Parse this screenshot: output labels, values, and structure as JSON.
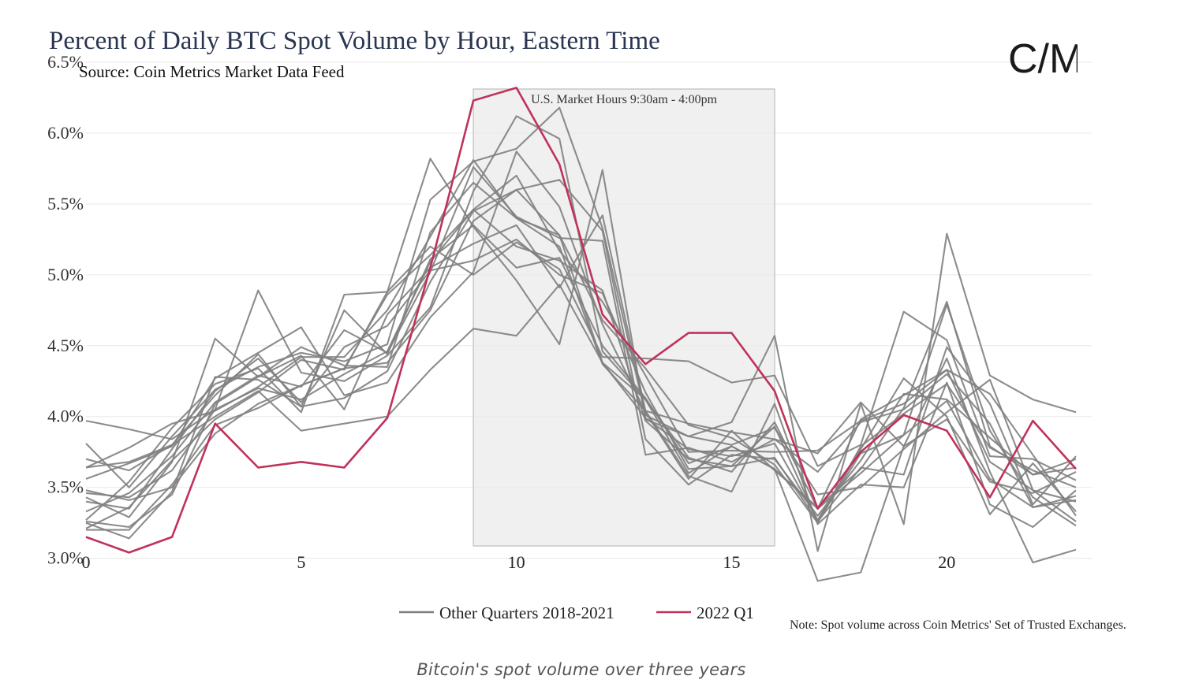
{
  "chart_data": {
    "type": "line",
    "title": "Percent of Daily BTC Spot Volume by Hour, Eastern Time",
    "subtitle": "Source: Coin Metrics Market Data Feed",
    "xlabel": "",
    "ylabel": "",
    "x": [
      0,
      1,
      2,
      3,
      4,
      5,
      6,
      7,
      8,
      9,
      10,
      11,
      12,
      13,
      14,
      15,
      16,
      17,
      18,
      19,
      20,
      21,
      22,
      23
    ],
    "xlim": [
      0,
      23
    ],
    "ylim": [
      2.77,
      6.55
    ],
    "x_ticks": [
      0,
      5,
      10,
      15,
      20
    ],
    "x_tick_labels": [
      "0",
      "5",
      "10",
      "15",
      "20"
    ],
    "y_ticks": [
      3.0,
      3.5,
      4.0,
      4.5,
      5.0,
      5.5,
      6.0,
      6.5
    ],
    "y_tick_labels": [
      "3.0%",
      "3.5%",
      "4.0%",
      "4.5%",
      "5.0%",
      "5.5%",
      "6.0%",
      "6.5%"
    ],
    "grid": true,
    "legend_position": "bottom-center",
    "shaded_region": {
      "x_start": 9,
      "x_end": 16,
      "label": "U.S. Market Hours 9:30am - 4:00pm",
      "color": "#ebebeb"
    },
    "colors": {
      "other_quarters": "#7f7f7f",
      "q1_2022": "#c0325a"
    },
    "legend": [
      "Other Quarters 2018-2021",
      "2022 Q1"
    ],
    "series": [
      {
        "name": "2022 Q1",
        "values": [
          3.15,
          3.04,
          3.15,
          3.95,
          3.64,
          3.68,
          3.64,
          3.99,
          5.05,
          6.23,
          6.32,
          5.78,
          4.72,
          4.37,
          4.59,
          4.59,
          4.18,
          3.35,
          3.75,
          4.01,
          3.9,
          3.43,
          3.97,
          3.63
        ]
      },
      {
        "group": "Other Quarters 2018-2021",
        "values": [
          3.97,
          3.91,
          3.84,
          4.05,
          4.2,
          4.12,
          4.3,
          4.46,
          5.09,
          5.46,
          5.7,
          5.17,
          4.81,
          4.29,
          3.75,
          3.76,
          3.75,
          3.76,
          3.97,
          4.09,
          4.33,
          3.68,
          3.48,
          3.26
        ]
      },
      {
        "group": "Other Quarters 2018-2021",
        "values": [
          3.81,
          3.5,
          3.86,
          4.19,
          4.35,
          4.45,
          4.39,
          4.51,
          5.53,
          5.8,
          5.89,
          6.18,
          5.33,
          4.01,
          3.86,
          3.8,
          3.92,
          3.45,
          3.5,
          3.77,
          4.03,
          4.26,
          3.48,
          3.4
        ]
      },
      {
        "group": "Other Quarters 2018-2021",
        "values": [
          3.64,
          3.68,
          3.8,
          4.15,
          4.44,
          4.07,
          4.75,
          4.44,
          5.11,
          5.35,
          5.05,
          5.12,
          4.5,
          4.13,
          3.67,
          3.79,
          3.63,
          3.35,
          3.98,
          4.15,
          4.33,
          4.16,
          3.73,
          3.3
        ]
      },
      {
        "group": "Other Quarters 2018-2021",
        "values": [
          3.48,
          3.41,
          3.5,
          3.88,
          4.09,
          4.22,
          4.34,
          4.86,
          5.14,
          5.46,
          5.2,
          5.1,
          4.89,
          3.97,
          3.7,
          3.65,
          3.71,
          3.26,
          3.64,
          3.59,
          4.49,
          4.09,
          3.38,
          3.72
        ]
      },
      {
        "group": "Other Quarters 2018-2021",
        "values": [
          3.2,
          3.2,
          3.52,
          3.94,
          4.06,
          4.22,
          4.34,
          4.38,
          4.75,
          5.38,
          5.6,
          5.28,
          4.68,
          4.34,
          3.94,
          3.85,
          3.66,
          3.25,
          3.79,
          4.02,
          4.23,
          3.78,
          3.62,
          3.5
        ]
      },
      {
        "group": "Other Quarters 2018-2021",
        "values": [
          3.43,
          3.29,
          3.68,
          4.55,
          4.28,
          4.43,
          4.05,
          4.72,
          5.05,
          5.22,
          5.35,
          4.91,
          5.42,
          4.04,
          3.58,
          3.47,
          4.09,
          3.24,
          3.52,
          3.5,
          4.24,
          3.38,
          3.22,
          3.48
        ]
      },
      {
        "group": "Other Quarters 2018-2021",
        "values": [
          3.26,
          3.22,
          3.45,
          4.09,
          4.28,
          4.49,
          4.36,
          4.35,
          5.3,
          5.65,
          5.4,
          5.2,
          4.37,
          4.04,
          3.95,
          3.89,
          3.84,
          3.61,
          3.96,
          4.05,
          4.3,
          3.95,
          3.36,
          3.41
        ]
      },
      {
        "group": "Other Quarters 2018-2021",
        "values": [
          3.33,
          3.46,
          3.72,
          4.1,
          4.29,
          4.21,
          4.61,
          4.45,
          5.02,
          5.76,
          5.41,
          5.26,
          5.24,
          3.73,
          3.78,
          3.68,
          3.84,
          3.74,
          4.1,
          3.79,
          3.98,
          3.54,
          3.46,
          3.61
        ]
      },
      {
        "group": "Other Quarters 2018-2021",
        "values": [
          3.4,
          3.35,
          3.77,
          4.18,
          4.41,
          4.1,
          4.49,
          4.64,
          5.03,
          5.1,
          5.25,
          5.0,
          4.87,
          4.17,
          3.63,
          3.65,
          3.93,
          3.26,
          3.74,
          3.87,
          4.79,
          3.9,
          3.43,
          3.23
        ]
      },
      {
        "group": "Other Quarters 2018-2021",
        "values": [
          3.25,
          3.14,
          3.47,
          4.28,
          4.26,
          4.07,
          4.13,
          4.32,
          4.95,
          5.45,
          5.6,
          5.67,
          5.31,
          3.84,
          3.52,
          3.73,
          3.7,
          3.3,
          3.69,
          4.16,
          4.12,
          3.85,
          3.59,
          3.64
        ]
      },
      {
        "group": "Other Quarters 2018-2021",
        "values": [
          3.46,
          3.43,
          3.62,
          4.05,
          4.89,
          4.31,
          4.25,
          4.43,
          4.77,
          5.59,
          6.12,
          5.96,
          4.46,
          4.12,
          3.6,
          3.79,
          3.63,
          2.84,
          2.9,
          3.79,
          4.41,
          3.61,
          2.97,
          3.06
        ]
      },
      {
        "group": "Other Quarters 2018-2021",
        "values": [
          3.21,
          3.36,
          3.69,
          3.98,
          4.17,
          4.4,
          4.33,
          4.88,
          5.82,
          5.34,
          4.96,
          4.51,
          5.74,
          3.98,
          3.86,
          3.96,
          4.57,
          3.05,
          4.09,
          3.24,
          5.29,
          4.29,
          4.12,
          4.03
        ]
      },
      {
        "group": "Other Quarters 2018-2021",
        "values": [
          3.27,
          3.54,
          3.92,
          4.23,
          4.34,
          4.03,
          4.86,
          4.88,
          5.2,
          5.0,
          5.23,
          5.04,
          4.42,
          4.41,
          4.39,
          4.24,
          4.29,
          3.65,
          3.8,
          4.74,
          4.54,
          3.72,
          3.7,
          3.55
        ]
      },
      {
        "group": "Other Quarters 2018-2021",
        "values": [
          3.64,
          3.78,
          3.95,
          4.04,
          4.21,
          4.42,
          4.42,
          4.75,
          5.27,
          5.81,
          5.4,
          5.28,
          4.38,
          3.99,
          3.77,
          3.72,
          3.81,
          3.27,
          3.77,
          4.27,
          4.0,
          3.31,
          3.67,
          3.33
        ]
      },
      {
        "group": "Other Quarters 2018-2021",
        "values": [
          3.7,
          3.62,
          3.8,
          4.0,
          4.18,
          3.9,
          3.95,
          4.0,
          4.33,
          4.62,
          4.57,
          4.93,
          4.38,
          4.12,
          3.71,
          3.61,
          3.96,
          3.35,
          3.6,
          3.87,
          4.11,
          3.56,
          3.36,
          3.44
        ]
      },
      {
        "group": "Other Quarters 2018-2021",
        "values": [
          3.56,
          3.67,
          3.79,
          4.27,
          4.45,
          4.63,
          4.15,
          4.24,
          4.7,
          5.02,
          5.87,
          5.48,
          4.65,
          4.03,
          3.56,
          3.9,
          3.62,
          3.36,
          3.63,
          4.06,
          4.81,
          3.79,
          3.59,
          3.7
        ]
      }
    ]
  },
  "legend_labels": {
    "other": "Other Quarters 2018-2021",
    "q1": "2022 Q1"
  },
  "logo_text": "C/M",
  "note": "Note: Spot volume across Coin Metrics' Set of Trusted Exchanges.",
  "caption": "Bitcoin's spot volume over three years"
}
